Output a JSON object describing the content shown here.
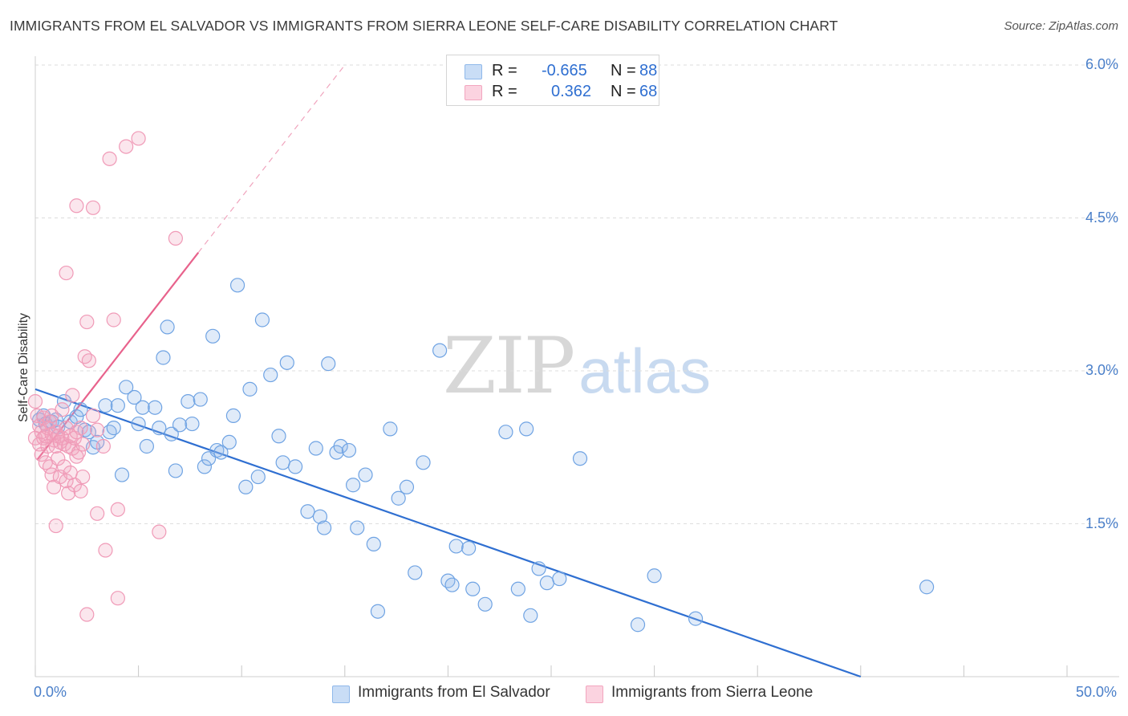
{
  "header": {
    "title": "IMMIGRANTS FROM EL SALVADOR VS IMMIGRANTS FROM SIERRA LEONE SELF-CARE DISABILITY CORRELATION CHART",
    "source": "Source: ZipAtlas.com"
  },
  "watermark": {
    "zip": "ZIP",
    "atlas": "atlas"
  },
  "legend": {
    "r_label": "R =",
    "n_label": "N =",
    "series": [
      {
        "r": "-0.665",
        "n": "88",
        "color": "#8fb8ea"
      },
      {
        "r": "0.362",
        "n": "68",
        "color": "#f2a6bf"
      }
    ]
  },
  "chart_data": {
    "type": "scatter",
    "title": "IMMIGRANTS FROM EL SALVADOR VS IMMIGRANTS FROM SIERRA LEONE SELF-CARE DISABILITY CORRELATION CHART",
    "xlabel": "",
    "ylabel": "Self-Care Disability",
    "xlim": [
      0,
      50
    ],
    "ylim": [
      0,
      6.2
    ],
    "x_tick_labels": [
      "0.0%",
      "50.0%"
    ],
    "y_ticks": [
      1.5,
      3.0,
      4.5,
      6.0
    ],
    "y_tick_labels": [
      "1.5%",
      "3.0%",
      "4.5%",
      "6.0%"
    ],
    "grid": true,
    "legend_position": "top-center and bottom",
    "series": [
      {
        "name": "Immigrants from El Salvador",
        "color": "#6fa3e3",
        "line_color": "#2f6fd1",
        "trend": {
          "x": [
            0.0,
            40.0
          ],
          "y": [
            2.82,
            0.0
          ]
        },
        "points": [
          [
            0.2,
            2.52
          ],
          [
            0.4,
            2.56
          ],
          [
            0.5,
            2.48
          ],
          [
            0.8,
            2.5
          ],
          [
            1.0,
            2.52
          ],
          [
            1.1,
            2.45
          ],
          [
            1.4,
            2.7
          ],
          [
            1.7,
            2.5
          ],
          [
            2.0,
            2.55
          ],
          [
            2.2,
            2.62
          ],
          [
            2.4,
            2.42
          ],
          [
            2.6,
            2.4
          ],
          [
            2.8,
            2.25
          ],
          [
            3.0,
            2.3
          ],
          [
            3.4,
            2.66
          ],
          [
            3.6,
            2.4
          ],
          [
            3.8,
            2.44
          ],
          [
            4.0,
            2.66
          ],
          [
            4.2,
            1.98
          ],
          [
            4.4,
            2.84
          ],
          [
            4.8,
            2.74
          ],
          [
            5.0,
            2.48
          ],
          [
            5.2,
            2.64
          ],
          [
            5.4,
            2.26
          ],
          [
            5.8,
            2.64
          ],
          [
            6.0,
            2.44
          ],
          [
            6.2,
            3.13
          ],
          [
            6.4,
            3.43
          ],
          [
            6.6,
            2.38
          ],
          [
            6.8,
            2.02
          ],
          [
            7.0,
            2.47
          ],
          [
            7.4,
            2.7
          ],
          [
            7.6,
            2.48
          ],
          [
            8.0,
            2.72
          ],
          [
            8.2,
            2.06
          ],
          [
            8.4,
            2.14
          ],
          [
            8.6,
            3.34
          ],
          [
            8.8,
            2.22
          ],
          [
            9.0,
            2.2
          ],
          [
            9.4,
            2.3
          ],
          [
            9.6,
            2.56
          ],
          [
            9.8,
            3.84
          ],
          [
            10.2,
            1.86
          ],
          [
            10.4,
            2.82
          ],
          [
            10.8,
            1.96
          ],
          [
            11.0,
            3.5
          ],
          [
            11.4,
            2.96
          ],
          [
            11.8,
            2.36
          ],
          [
            12.0,
            2.1
          ],
          [
            12.2,
            3.08
          ],
          [
            12.6,
            2.06
          ],
          [
            13.2,
            1.62
          ],
          [
            13.6,
            2.24
          ],
          [
            13.8,
            1.57
          ],
          [
            14.0,
            1.46
          ],
          [
            14.2,
            3.07
          ],
          [
            14.6,
            2.2
          ],
          [
            14.8,
            2.26
          ],
          [
            15.2,
            2.22
          ],
          [
            15.4,
            1.88
          ],
          [
            15.6,
            1.46
          ],
          [
            16.0,
            1.98
          ],
          [
            16.4,
            1.3
          ],
          [
            16.6,
            0.64
          ],
          [
            17.2,
            2.43
          ],
          [
            17.6,
            1.75
          ],
          [
            18.0,
            1.86
          ],
          [
            18.4,
            1.02
          ],
          [
            18.8,
            2.1
          ],
          [
            19.6,
            3.2
          ],
          [
            20.0,
            0.94
          ],
          [
            20.2,
            0.9
          ],
          [
            20.4,
            1.28
          ],
          [
            21.0,
            1.26
          ],
          [
            21.2,
            0.86
          ],
          [
            21.8,
            0.71
          ],
          [
            22.8,
            2.4
          ],
          [
            23.4,
            0.86
          ],
          [
            23.8,
            2.43
          ],
          [
            24.0,
            0.6
          ],
          [
            24.4,
            1.06
          ],
          [
            24.8,
            0.92
          ],
          [
            25.4,
            0.96
          ],
          [
            26.4,
            2.14
          ],
          [
            29.2,
            0.51
          ],
          [
            30.0,
            0.99
          ],
          [
            32.0,
            0.57
          ],
          [
            43.2,
            0.88
          ]
        ]
      },
      {
        "name": "Immigrants from Sierra Leone",
        "color": "#f09ab7",
        "line_color": "#e8628c",
        "trend": {
          "x": [
            0.1,
            7.9
          ],
          "y": [
            2.13,
            4.16
          ]
        },
        "trend_extension": {
          "x": [
            7.9,
            15.0
          ],
          "y": [
            4.16,
            6.0
          ]
        },
        "points": [
          [
            0.0,
            2.7
          ],
          [
            0.0,
            2.34
          ],
          [
            0.1,
            2.56
          ],
          [
            0.2,
            2.28
          ],
          [
            0.2,
            2.46
          ],
          [
            0.3,
            2.18
          ],
          [
            0.3,
            2.4
          ],
          [
            0.4,
            2.54
          ],
          [
            0.4,
            2.34
          ],
          [
            0.5,
            2.1
          ],
          [
            0.5,
            2.36
          ],
          [
            0.6,
            2.44
          ],
          [
            0.6,
            2.26
          ],
          [
            0.7,
            2.06
          ],
          [
            0.7,
            2.5
          ],
          [
            0.8,
            2.38
          ],
          [
            0.8,
            2.56
          ],
          [
            0.8,
            1.98
          ],
          [
            0.9,
            2.32
          ],
          [
            0.9,
            1.86
          ],
          [
            1.0,
            2.4
          ],
          [
            1.0,
            2.26
          ],
          [
            1.0,
            1.48
          ],
          [
            1.1,
            2.36
          ],
          [
            1.1,
            2.14
          ],
          [
            1.2,
            2.3
          ],
          [
            1.2,
            1.96
          ],
          [
            1.3,
            2.34
          ],
          [
            1.3,
            2.62
          ],
          [
            1.4,
            2.28
          ],
          [
            1.4,
            2.06
          ],
          [
            1.5,
            2.44
          ],
          [
            1.5,
            1.92
          ],
          [
            1.6,
            2.26
          ],
          [
            1.6,
            1.8
          ],
          [
            1.7,
            2.36
          ],
          [
            1.7,
            2.0
          ],
          [
            1.8,
            2.24
          ],
          [
            1.8,
            2.76
          ],
          [
            1.9,
            2.34
          ],
          [
            1.9,
            1.88
          ],
          [
            2.0,
            2.4
          ],
          [
            2.0,
            2.16
          ],
          [
            2.1,
            2.2
          ],
          [
            2.2,
            2.44
          ],
          [
            2.2,
            1.82
          ],
          [
            2.3,
            2.28
          ],
          [
            2.4,
            3.14
          ],
          [
            2.5,
            3.48
          ],
          [
            2.6,
            3.1
          ],
          [
            2.8,
            2.56
          ],
          [
            3.0,
            2.42
          ],
          [
            3.3,
            2.26
          ],
          [
            1.5,
            3.96
          ],
          [
            2.0,
            4.62
          ],
          [
            2.3,
            1.96
          ],
          [
            2.5,
            0.61
          ],
          [
            2.8,
            4.6
          ],
          [
            3.0,
            1.6
          ],
          [
            3.4,
            1.24
          ],
          [
            3.6,
            5.08
          ],
          [
            3.8,
            3.5
          ],
          [
            4.0,
            0.77
          ],
          [
            4.0,
            1.64
          ],
          [
            4.4,
            5.2
          ],
          [
            5.0,
            5.28
          ],
          [
            6.0,
            1.42
          ],
          [
            6.8,
            4.3
          ]
        ]
      }
    ]
  }
}
